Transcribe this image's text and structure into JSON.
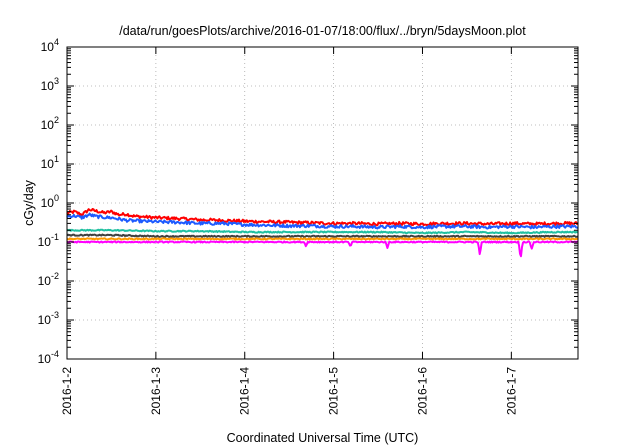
{
  "chart_data": {
    "type": "line",
    "title": "/data/run/goesPlots/archive/2016-01-07/18:00/flux/../bryn/5daysMoon.plot",
    "xlabel": "Coordinated Universal Time (UTC)",
    "ylabel": "cGy/day",
    "yscale": "log",
    "ylim": [
      0.0001,
      10000
    ],
    "y_ticks": [
      {
        "value": 0.0001,
        "base": "10",
        "exp": "-4"
      },
      {
        "value": 0.001,
        "base": "10",
        "exp": "-3"
      },
      {
        "value": 0.01,
        "base": "10",
        "exp": "-2"
      },
      {
        "value": 0.1,
        "base": "10",
        "exp": "-1"
      },
      {
        "value": 1,
        "base": "10",
        "exp": "0"
      },
      {
        "value": 10,
        "base": "10",
        "exp": "1"
      },
      {
        "value": 100,
        "base": "10",
        "exp": "2"
      },
      {
        "value": 1000,
        "base": "10",
        "exp": "3"
      },
      {
        "value": 10000,
        "base": "10",
        "exp": "4"
      }
    ],
    "x_range": [
      "2016-01-02T00:00",
      "2016-01-07T18:00"
    ],
    "x_ticks": [
      {
        "value": "2016-01-02T00:00",
        "label": "2016-1-2"
      },
      {
        "value": "2016-01-03T00:00",
        "label": "2016-1-3"
      },
      {
        "value": "2016-01-04T00:00",
        "label": "2016-1-4"
      },
      {
        "value": "2016-01-05T00:00",
        "label": "2016-1-5"
      },
      {
        "value": "2016-01-06T00:00",
        "label": "2016-1-6"
      },
      {
        "value": "2016-01-07T00:00",
        "label": "2016-1-7"
      }
    ],
    "grid": true,
    "legend": "none",
    "series": [
      {
        "color": "#ff0000",
        "x": [
          "2016-01-02T00:00",
          "2016-01-02T02:00",
          "2016-01-02T04:00",
          "2016-01-02T06:00",
          "2016-01-02T08:00",
          "2016-01-02T10:00",
          "2016-01-02T12:00",
          "2016-01-02T14:00",
          "2016-01-02T16:00",
          "2016-01-02T18:00",
          "2016-01-03T00:00",
          "2016-01-03T06:00",
          "2016-01-03T12:00",
          "2016-01-03T18:00",
          "2016-01-04T00:00",
          "2016-01-04T06:00",
          "2016-01-04T12:00",
          "2016-01-04T18:00",
          "2016-01-05T00:00",
          "2016-01-05T06:00",
          "2016-01-05T12:00",
          "2016-01-05T18:00",
          "2016-01-06T00:00",
          "2016-01-06T06:00",
          "2016-01-06T12:00",
          "2016-01-06T18:00",
          "2016-01-07T00:00",
          "2016-01-07T06:00",
          "2016-01-07T12:00",
          "2016-01-07T18:00"
        ],
        "y": [
          0.55,
          0.6,
          0.5,
          0.68,
          0.62,
          0.56,
          0.6,
          0.5,
          0.52,
          0.46,
          0.42,
          0.4,
          0.37,
          0.36,
          0.34,
          0.33,
          0.32,
          0.31,
          0.3,
          0.3,
          0.29,
          0.3,
          0.29,
          0.3,
          0.3,
          0.29,
          0.3,
          0.29,
          0.3,
          0.3
        ]
      },
      {
        "color": "#1e5bff",
        "x": [
          "2016-01-02T00:00",
          "2016-01-02T02:00",
          "2016-01-02T04:00",
          "2016-01-02T06:00",
          "2016-01-02T08:00",
          "2016-01-02T10:00",
          "2016-01-02T12:00",
          "2016-01-02T14:00",
          "2016-01-02T16:00",
          "2016-01-02T18:00",
          "2016-01-03T00:00",
          "2016-01-03T06:00",
          "2016-01-03T12:00",
          "2016-01-03T18:00",
          "2016-01-04T00:00",
          "2016-01-04T06:00",
          "2016-01-04T12:00",
          "2016-01-04T18:00",
          "2016-01-05T00:00",
          "2016-01-05T06:00",
          "2016-01-05T12:00",
          "2016-01-05T18:00",
          "2016-01-06T00:00",
          "2016-01-06T06:00",
          "2016-01-06T12:00",
          "2016-01-06T18:00",
          "2016-01-07T00:00",
          "2016-01-07T06:00",
          "2016-01-07T12:00",
          "2016-01-07T18:00"
        ],
        "y": [
          0.45,
          0.47,
          0.42,
          0.5,
          0.45,
          0.43,
          0.42,
          0.39,
          0.36,
          0.35,
          0.33,
          0.32,
          0.3,
          0.3,
          0.28,
          0.27,
          0.26,
          0.26,
          0.25,
          0.25,
          0.24,
          0.25,
          0.24,
          0.25,
          0.25,
          0.24,
          0.25,
          0.24,
          0.25,
          0.25
        ]
      },
      {
        "color": "#20c0a0",
        "x": [
          "2016-01-02T00:00",
          "2016-01-02T12:00",
          "2016-01-03T00:00",
          "2016-01-03T12:00",
          "2016-01-04T00:00",
          "2016-01-04T12:00",
          "2016-01-05T00:00",
          "2016-01-05T12:00",
          "2016-01-06T00:00",
          "2016-01-06T12:00",
          "2016-01-07T00:00",
          "2016-01-07T12:00",
          "2016-01-07T18:00"
        ],
        "y": [
          0.2,
          0.2,
          0.19,
          0.19,
          0.18,
          0.18,
          0.18,
          0.18,
          0.17,
          0.18,
          0.17,
          0.18,
          0.18
        ]
      },
      {
        "color": "#404040",
        "x": [
          "2016-01-02T00:00",
          "2016-01-02T12:00",
          "2016-01-03T00:00",
          "2016-01-03T12:00",
          "2016-01-04T00:00",
          "2016-01-04T12:00",
          "2016-01-05T00:00",
          "2016-01-05T12:00",
          "2016-01-06T00:00",
          "2016-01-06T12:00",
          "2016-01-07T00:00",
          "2016-01-07T12:00",
          "2016-01-07T18:00"
        ],
        "y": [
          0.15,
          0.15,
          0.14,
          0.14,
          0.14,
          0.14,
          0.14,
          0.14,
          0.14,
          0.14,
          0.14,
          0.14,
          0.14
        ]
      },
      {
        "color": "#ff9900",
        "x": [
          "2016-01-02T00:00",
          "2016-01-02T12:00",
          "2016-01-03T00:00",
          "2016-01-03T12:00",
          "2016-01-04T00:00",
          "2016-01-04T12:00",
          "2016-01-05T00:00",
          "2016-01-05T12:00",
          "2016-01-06T00:00",
          "2016-01-06T12:00",
          "2016-01-07T00:00",
          "2016-01-07T12:00",
          "2016-01-07T18:00"
        ],
        "y": [
          0.12,
          0.12,
          0.12,
          0.12,
          0.12,
          0.12,
          0.12,
          0.12,
          0.12,
          0.12,
          0.12,
          0.12,
          0.12
        ]
      },
      {
        "color": "#ff00ff",
        "x": [
          "2016-01-02T00:00",
          "2016-01-02T12:00",
          "2016-01-03T00:00",
          "2016-01-03T12:00",
          "2016-01-04T00:00",
          "2016-01-04T12:00",
          "2016-01-04T16:00",
          "2016-01-04T16:30",
          "2016-01-04T17:00",
          "2016-01-05T00:00",
          "2016-01-05T04:00",
          "2016-01-05T04:30",
          "2016-01-05T05:00",
          "2016-01-05T12:00",
          "2016-01-05T14:00",
          "2016-01-05T14:30",
          "2016-01-05T15:00",
          "2016-01-06T00:00",
          "2016-01-06T12:00",
          "2016-01-06T15:00",
          "2016-01-06T15:30",
          "2016-01-06T16:00",
          "2016-01-07T00:00",
          "2016-01-07T02:00",
          "2016-01-07T02:30",
          "2016-01-07T03:00",
          "2016-01-07T05:00",
          "2016-01-07T05:30",
          "2016-01-07T06:00",
          "2016-01-07T12:00",
          "2016-01-07T18:00"
        ],
        "y": [
          0.1,
          0.1,
          0.1,
          0.1,
          0.1,
          0.1,
          0.1,
          0.08,
          0.1,
          0.1,
          0.1,
          0.075,
          0.1,
          0.1,
          0.1,
          0.07,
          0.1,
          0.1,
          0.1,
          0.1,
          0.045,
          0.1,
          0.1,
          0.1,
          0.035,
          0.1,
          0.1,
          0.065,
          0.1,
          0.1,
          0.1
        ]
      }
    ]
  }
}
